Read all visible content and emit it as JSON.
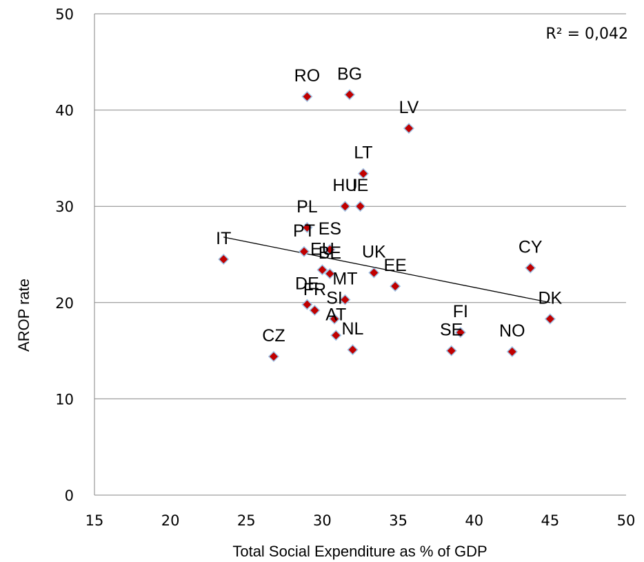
{
  "chart_data": {
    "type": "scatter",
    "xlabel": "Total Social Expenditure as % of GDP",
    "ylabel": "AROP rate",
    "xlim": [
      15,
      50
    ],
    "ylim": [
      0,
      50
    ],
    "x_ticks": [
      15,
      20,
      25,
      30,
      35,
      40,
      45,
      50
    ],
    "y_ticks": [
      0,
      10,
      20,
      30,
      40,
      50
    ],
    "x_tick_labels": [
      "15",
      "20",
      "25",
      "30",
      "35",
      "40",
      "45",
      "50"
    ],
    "y_tick_labels": [
      "0",
      "10",
      "20",
      "30",
      "40",
      "50"
    ],
    "grid": "horizontal",
    "marker_color": "#C00000",
    "marker_edge_color": "#9DC3E6",
    "trendline_color": "#000000",
    "r_squared_label": "R² = 0,042",
    "trendline": {
      "x": [
        23.5,
        45
      ],
      "y": [
        26.8,
        20.0
      ]
    },
    "points": [
      {
        "label": "RO",
        "x": 29.0,
        "y": 41.4
      },
      {
        "label": "BG",
        "x": 31.8,
        "y": 41.6
      },
      {
        "label": "LV",
        "x": 35.7,
        "y": 38.1
      },
      {
        "label": "LT",
        "x": 32.7,
        "y": 33.4
      },
      {
        "label": "HU",
        "x": 31.5,
        "y": 30.0
      },
      {
        "label": "IE",
        "x": 32.5,
        "y": 30.0
      },
      {
        "label": "PL",
        "x": 29.0,
        "y": 27.8
      },
      {
        "label": "PT",
        "x": 28.8,
        "y": 25.3
      },
      {
        "label": "ES",
        "x": 30.5,
        "y": 25.5
      },
      {
        "label": "IT",
        "x": 23.5,
        "y": 24.5
      },
      {
        "label": "EU",
        "x": 30.0,
        "y": 23.4
      },
      {
        "label": "UK",
        "x": 33.4,
        "y": 23.1
      },
      {
        "label": "EE",
        "x": 34.8,
        "y": 21.7
      },
      {
        "label": "BE",
        "x": 30.5,
        "y": 23.0
      },
      {
        "label": "MT",
        "x": 31.5,
        "y": 20.3
      },
      {
        "label": "DE",
        "x": 29.0,
        "y": 19.8
      },
      {
        "label": "FR",
        "x": 29.5,
        "y": 19.2
      },
      {
        "label": "SI",
        "x": 30.8,
        "y": 18.3
      },
      {
        "label": "AT",
        "x": 30.9,
        "y": 16.6
      },
      {
        "label": "NL",
        "x": 32.0,
        "y": 15.1
      },
      {
        "label": "CZ",
        "x": 26.8,
        "y": 14.4
      },
      {
        "label": "CY",
        "x": 43.7,
        "y": 23.6
      },
      {
        "label": "DK",
        "x": 45.0,
        "y": 18.3
      },
      {
        "label": "FI",
        "x": 39.1,
        "y": 16.9
      },
      {
        "label": "SE",
        "x": 38.5,
        "y": 15.0
      },
      {
        "label": "NO",
        "x": 42.5,
        "y": 14.9
      }
    ]
  }
}
